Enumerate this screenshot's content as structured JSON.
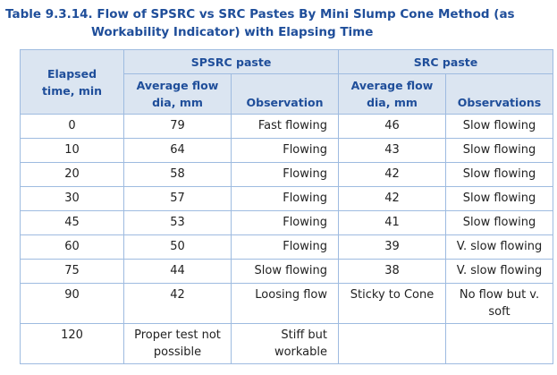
{
  "title": {
    "label": "Table 9.3.14.",
    "text": "Flow of SPSRC vs SRC Pastes By Mini Slump Cone Method (as Workability Indicator) with Elapsing Time"
  },
  "table": {
    "group_headers": [
      "SPSRC paste",
      "SRC paste"
    ],
    "headers": [
      "Elapsed time, min",
      "Average flow dia, mm",
      "Observation",
      "Average flow dia, mm",
      "Observations"
    ],
    "rows": [
      [
        0,
        79,
        "Fast flowing",
        46,
        "Slow flowing"
      ],
      [
        10,
        64,
        "Flowing",
        43,
        "Slow flowing"
      ],
      [
        20,
        58,
        "Flowing",
        42,
        "Slow flowing"
      ],
      [
        30,
        57,
        "Flowing",
        42,
        "Slow flowing"
      ],
      [
        45,
        53,
        "Flowing",
        41,
        "Slow flowing"
      ],
      [
        60,
        50,
        "Flowing",
        39,
        "V. slow flowing"
      ],
      [
        75,
        44,
        "Slow flowing",
        38,
        "V. slow flowing"
      ],
      [
        90,
        42,
        "Loosing flow",
        "Sticky to Cone",
        "No flow but v. soft"
      ],
      [
        120,
        "Proper test not possible",
        "Stiff but workable",
        null,
        null
      ]
    ]
  }
}
